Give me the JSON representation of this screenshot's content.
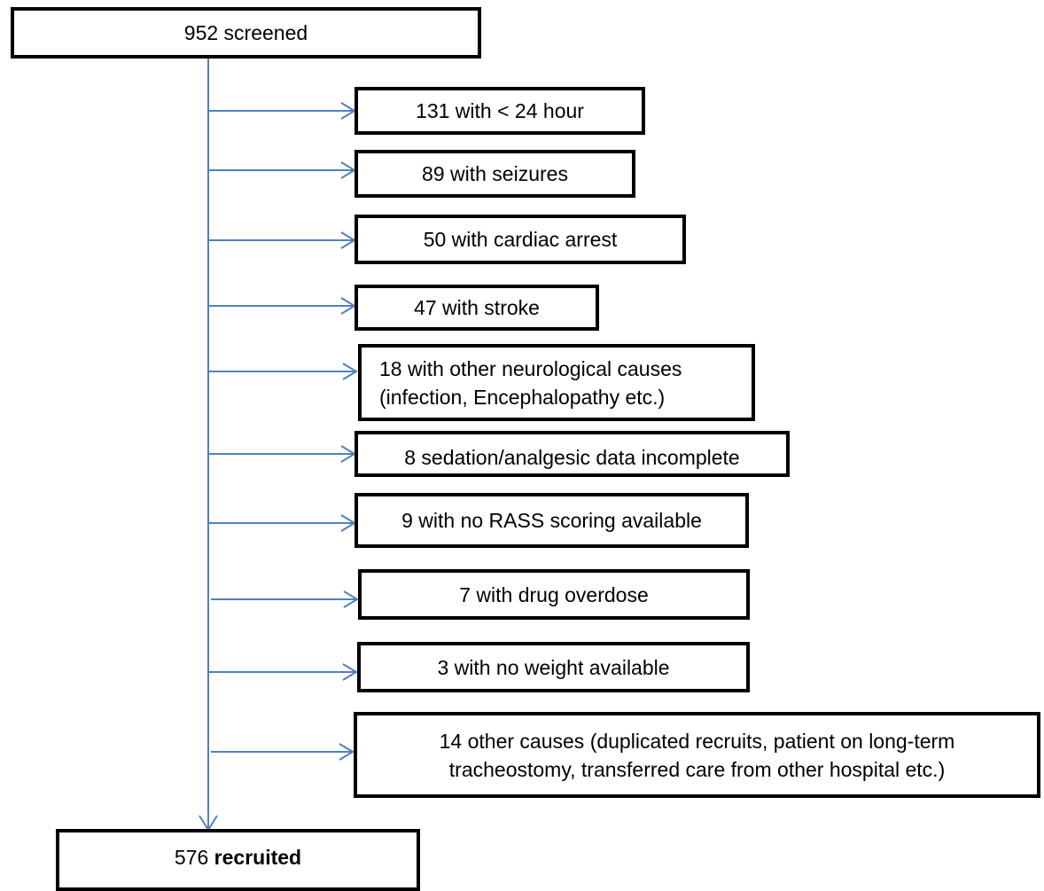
{
  "diagram": {
    "line_color": "#4f81bd",
    "box_border_color": "#000000",
    "screened": {
      "text": "952 screened"
    },
    "exclusions": [
      {
        "lines": [
          "131 with < 24 hour"
        ]
      },
      {
        "lines": [
          "89 with seizures"
        ]
      },
      {
        "lines": [
          "50 with cardiac arrest"
        ]
      },
      {
        "lines": [
          "47 with stroke"
        ]
      },
      {
        "lines": [
          "18 with other neurological causes",
          "(infection, Encephalopathy etc.)"
        ]
      },
      {
        "lines": [
          "8 sedation/analgesic data incomplete"
        ]
      },
      {
        "lines": [
          "9 with no RASS scoring available"
        ]
      },
      {
        "lines": [
          "7 with drug overdose"
        ]
      },
      {
        "lines": [
          "3 with no weight available"
        ]
      },
      {
        "lines": [
          "14 other causes (duplicated recruits, patient on long-term",
          "tracheostomy, transferred care from other hospital etc.)"
        ]
      }
    ],
    "recruited": {
      "count": "576",
      "label": "recruited"
    }
  }
}
